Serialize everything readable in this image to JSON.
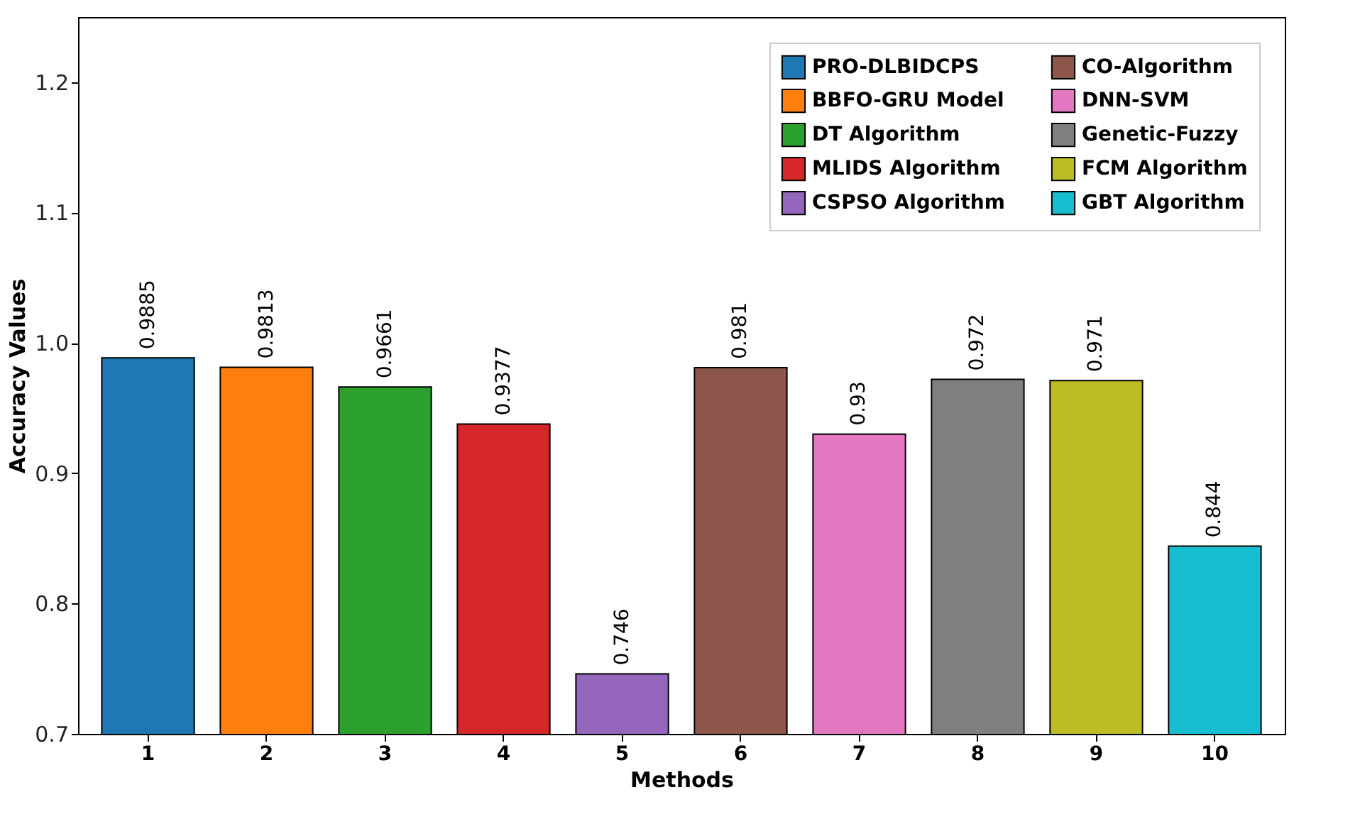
{
  "chart_data": {
    "type": "bar",
    "xlabel": "Methods",
    "ylabel": "Accuracy Values",
    "categories": [
      "1",
      "2",
      "3",
      "4",
      "5",
      "6",
      "7",
      "8",
      "9",
      "10"
    ],
    "series": [
      {
        "name": "PRO-DLBIDCPS",
        "color": "#1f77b4",
        "values": [
          0.9885,
          null,
          null,
          null,
          null,
          null,
          null,
          null,
          null,
          null
        ]
      },
      {
        "name": "BBFO-GRU Model",
        "color": "#ff7f0e",
        "values": [
          null,
          0.9813,
          null,
          null,
          null,
          null,
          null,
          null,
          null,
          null
        ]
      },
      {
        "name": "DT Algorithm",
        "color": "#2ca02c",
        "values": [
          null,
          null,
          0.9661,
          null,
          null,
          null,
          null,
          null,
          null,
          null
        ]
      },
      {
        "name": "MLIDS Algorithm",
        "color": "#d62728",
        "values": [
          null,
          null,
          null,
          0.9377,
          null,
          null,
          null,
          null,
          null,
          null
        ]
      },
      {
        "name": "CSPSO Algorithm",
        "color": "#9467bd",
        "values": [
          null,
          null,
          null,
          null,
          0.746,
          null,
          null,
          null,
          null,
          null
        ]
      },
      {
        "name": "CO-Algorithm",
        "color": "#8c564b",
        "values": [
          null,
          null,
          null,
          null,
          null,
          0.981,
          null,
          null,
          null,
          null
        ]
      },
      {
        "name": "DNN-SVM",
        "color": "#e377c2",
        "values": [
          null,
          null,
          null,
          null,
          null,
          null,
          0.93,
          null,
          null,
          null
        ]
      },
      {
        "name": "Genetic-Fuzzy",
        "color": "#7f7f7f",
        "values": [
          null,
          null,
          null,
          null,
          null,
          null,
          null,
          0.972,
          null,
          null
        ]
      },
      {
        "name": "FCM Algorithm",
        "color": "#bcbd22",
        "values": [
          null,
          null,
          null,
          null,
          null,
          null,
          null,
          null,
          0.971,
          null
        ]
      },
      {
        "name": "GBT Algorithm",
        "color": "#17becf",
        "values": [
          null,
          null,
          null,
          null,
          null,
          null,
          null,
          null,
          null,
          0.844
        ]
      }
    ],
    "ylim": [
      0.7,
      1.25
    ],
    "yticks": [
      0.7,
      0.8,
      0.9,
      {
        "value": 1,
        "label": "1.0"
      },
      1.1,
      1.2
    ],
    "data_labels": true,
    "legend": "top right"
  }
}
